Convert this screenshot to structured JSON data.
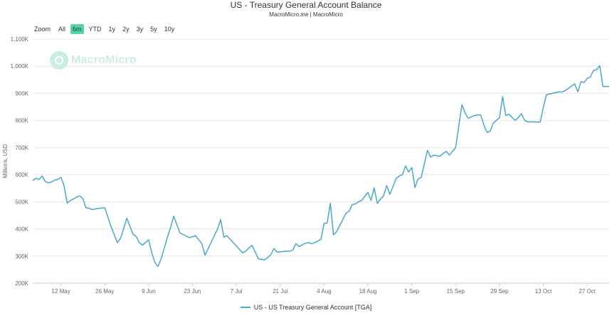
{
  "chart_title": "US - Treasury General Account Balance",
  "chart_subtitle": "MacroMicro.me | MacroMicro",
  "watermark_text": "MacroMicro",
  "zoom": {
    "label": "Zoom",
    "buttons": [
      "All",
      "6m",
      "YTD",
      "1y",
      "2y",
      "3y",
      "5y",
      "10y"
    ],
    "active": "6m"
  },
  "colors": {
    "series": "#4aa8cc",
    "active_zoom": "#55d6a8",
    "grid": "#e6e6e6"
  },
  "chart_data": {
    "type": "line",
    "title": "US - Treasury General Account Balance",
    "subtitle": "MacroMicro.me | MacroMicro",
    "ylabel": "Millions, USD",
    "xlabel": "",
    "ylim": [
      200,
      1100
    ],
    "xlim": [
      "2023-05-03",
      "2023-11-03"
    ],
    "y_ticks": [
      200,
      300,
      400,
      500,
      600,
      700,
      800,
      900,
      1000,
      1100
    ],
    "y_tick_labels": [
      "200K",
      "300K",
      "400K",
      "500K",
      "600K",
      "700K",
      "800K",
      "900K",
      "1,000K",
      "1,100K"
    ],
    "x_ticks": [
      "2023-05-12",
      "2023-05-26",
      "2023-06-09",
      "2023-06-23",
      "2023-07-07",
      "2023-07-21",
      "2023-08-04",
      "2023-08-18",
      "2023-09-01",
      "2023-09-15",
      "2023-09-29",
      "2023-10-13",
      "2023-10-27"
    ],
    "x_tick_labels": [
      "12 May",
      "26 May",
      "9 Jun",
      "23 Jun",
      "7 Jul",
      "21 Jul",
      "4 Aug",
      "18 Aug",
      "1 Sep",
      "15 Sep",
      "29 Sep",
      "13 Oct",
      "27 Oct"
    ],
    "grid": "horizontal",
    "legend_position": "bottom-center",
    "series": [
      {
        "name": "US - US Treasury General Account [TGA]",
        "x": [
          "2023-05-03",
          "2023-05-04",
          "2023-05-05",
          "2023-05-06",
          "2023-05-07",
          "2023-05-08",
          "2023-05-09",
          "2023-05-10",
          "2023-05-11",
          "2023-05-12",
          "2023-05-13",
          "2023-05-14",
          "2023-05-15",
          "2023-05-16",
          "2023-05-17",
          "2023-05-18",
          "2023-05-19",
          "2023-05-20",
          "2023-05-21",
          "2023-05-22",
          "2023-05-24",
          "2023-05-26",
          "2023-05-28",
          "2023-05-30",
          "2023-05-31",
          "2023-06-01",
          "2023-06-02",
          "2023-06-04",
          "2023-06-05",
          "2023-06-06",
          "2023-06-07",
          "2023-06-09",
          "2023-06-10",
          "2023-06-11",
          "2023-06-12",
          "2023-06-13",
          "2023-06-14",
          "2023-06-15",
          "2023-06-16",
          "2023-06-17",
          "2023-06-19",
          "2023-06-22",
          "2023-06-24",
          "2023-06-26",
          "2023-06-27",
          "2023-07-01",
          "2023-07-02",
          "2023-07-03",
          "2023-07-04",
          "2023-07-09",
          "2023-07-10",
          "2023-07-11",
          "2023-07-12",
          "2023-07-13",
          "2023-07-14",
          "2023-07-16",
          "2023-07-17",
          "2023-07-18",
          "2023-07-19",
          "2023-07-20",
          "2023-07-23",
          "2023-07-24",
          "2023-07-25",
          "2023-07-26",
          "2023-07-27",
          "2023-07-29",
          "2023-07-30",
          "2023-07-31",
          "2023-08-01",
          "2023-08-02",
          "2023-08-03",
          "2023-08-04",
          "2023-08-05",
          "2023-08-06",
          "2023-08-07",
          "2023-08-08",
          "2023-08-11",
          "2023-08-12",
          "2023-08-13",
          "2023-08-14",
          "2023-08-15",
          "2023-08-16",
          "2023-08-18",
          "2023-08-19",
          "2023-08-20",
          "2023-08-21",
          "2023-08-22",
          "2023-08-23",
          "2023-08-24",
          "2023-08-25",
          "2023-08-27",
          "2023-08-28",
          "2023-08-29",
          "2023-08-30",
          "2023-08-31",
          "2023-09-01",
          "2023-09-02",
          "2023-09-03",
          "2023-09-04",
          "2023-09-05",
          "2023-09-06",
          "2023-09-07",
          "2023-09-08",
          "2023-09-09",
          "2023-09-10",
          "2023-09-11",
          "2023-09-12",
          "2023-09-13",
          "2023-09-15",
          "2023-09-17",
          "2023-09-18",
          "2023-09-19",
          "2023-09-21",
          "2023-09-22",
          "2023-09-23",
          "2023-09-24",
          "2023-09-25",
          "2023-09-26",
          "2023-09-27",
          "2023-09-29",
          "2023-09-30",
          "2023-10-01",
          "2023-10-02",
          "2023-10-04",
          "2023-10-05",
          "2023-10-06",
          "2023-10-07",
          "2023-10-08",
          "2023-10-12",
          "2023-10-13",
          "2023-10-14",
          "2023-10-18",
          "2023-10-19",
          "2023-10-20",
          "2023-10-23",
          "2023-10-24",
          "2023-10-25",
          "2023-10-26",
          "2023-10-27",
          "2023-10-28",
          "2023-10-29",
          "2023-10-30",
          "2023-10-31",
          "2023-11-01",
          "2023-11-02",
          "2023-11-03"
        ],
        "values": [
          578,
          587,
          582,
          595,
          575,
          570,
          573,
          580,
          583,
          590,
          560,
          495,
          505,
          510,
          518,
          522,
          512,
          478,
          476,
          471,
          476,
          478,
          408,
          350,
          365,
          400,
          440,
          380,
          373,
          350,
          340,
          360,
          312,
          276,
          262,
          290,
          330,
          370,
          405,
          447,
          385,
          368,
          375,
          345,
          303,
          400,
          435,
          370,
          375,
          312,
          318,
          330,
          339,
          315,
          290,
          286,
          295,
          305,
          328,
          314,
          318,
          318,
          322,
          346,
          335,
          347,
          350,
          345,
          350,
          355,
          362,
          420,
          422,
          495,
          378,
          390,
          458,
          465,
          490,
          492,
          500,
          505,
          535,
          505,
          552,
          494,
          510,
          522,
          560,
          527,
          586,
          595,
          600,
          632,
          610,
          626,
          553,
          584,
          590,
          640,
          690,
          665,
          672,
          670,
          668,
          678,
          686,
          672,
          700,
          858,
          828,
          808,
          818,
          820,
          820,
          784,
          756,
          760,
          790,
          810,
          888,
          818,
          823,
          800,
          810,
          825,
          800,
          795,
          794,
          850,
          895,
          905,
          905,
          910,
          935,
          905,
          943,
          940,
          955,
          960,
          984,
          987,
          1002,
          925,
          925,
          925
        ]
      }
    ]
  }
}
